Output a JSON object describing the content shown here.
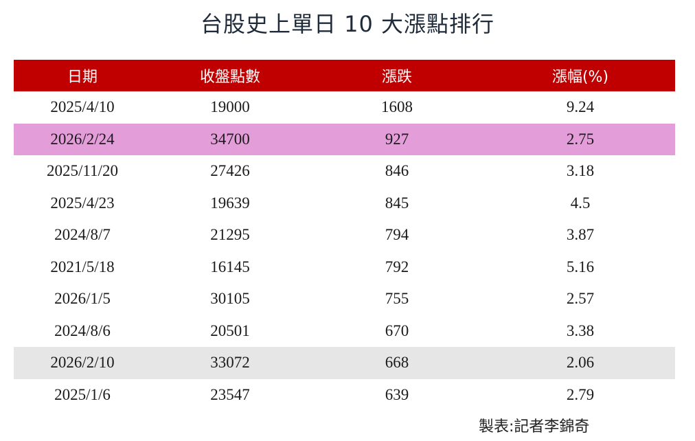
{
  "chart_data": {
    "type": "table",
    "title": "台股史上單日 10 大漲點排行",
    "columns": [
      "日期",
      "收盤點數",
      "漲跌",
      "漲幅(%)"
    ],
    "rows": [
      {
        "date": "2025/4/10",
        "close": "19000",
        "change": "1608",
        "pct": "9.24"
      },
      {
        "date": "2026/2/24",
        "close": "34700",
        "change": "927",
        "pct": "2.75",
        "highlight": "#e39dd9"
      },
      {
        "date": "2025/11/20",
        "close": "27426",
        "change": "846",
        "pct": "3.18"
      },
      {
        "date": "2025/4/23",
        "close": "19639",
        "change": "845",
        "pct": "4.5"
      },
      {
        "date": "2024/8/7",
        "close": "21295",
        "change": "794",
        "pct": "3.87"
      },
      {
        "date": "2021/5/18",
        "close": "16145",
        "change": "792",
        "pct": "5.16"
      },
      {
        "date": "2026/1/5",
        "close": "30105",
        "change": "755",
        "pct": "2.57"
      },
      {
        "date": "2024/8/6",
        "close": "20501",
        "change": "670",
        "pct": "3.38"
      },
      {
        "date": "2026/2/10",
        "close": "33072",
        "change": "668",
        "pct": "2.06",
        "highlight": "#e6e6e6"
      },
      {
        "date": "2025/1/6",
        "close": "23547",
        "change": "639",
        "pct": "2.79"
      }
    ],
    "header_color": "#c00000"
  },
  "footer": "製表:記者李錦奇"
}
